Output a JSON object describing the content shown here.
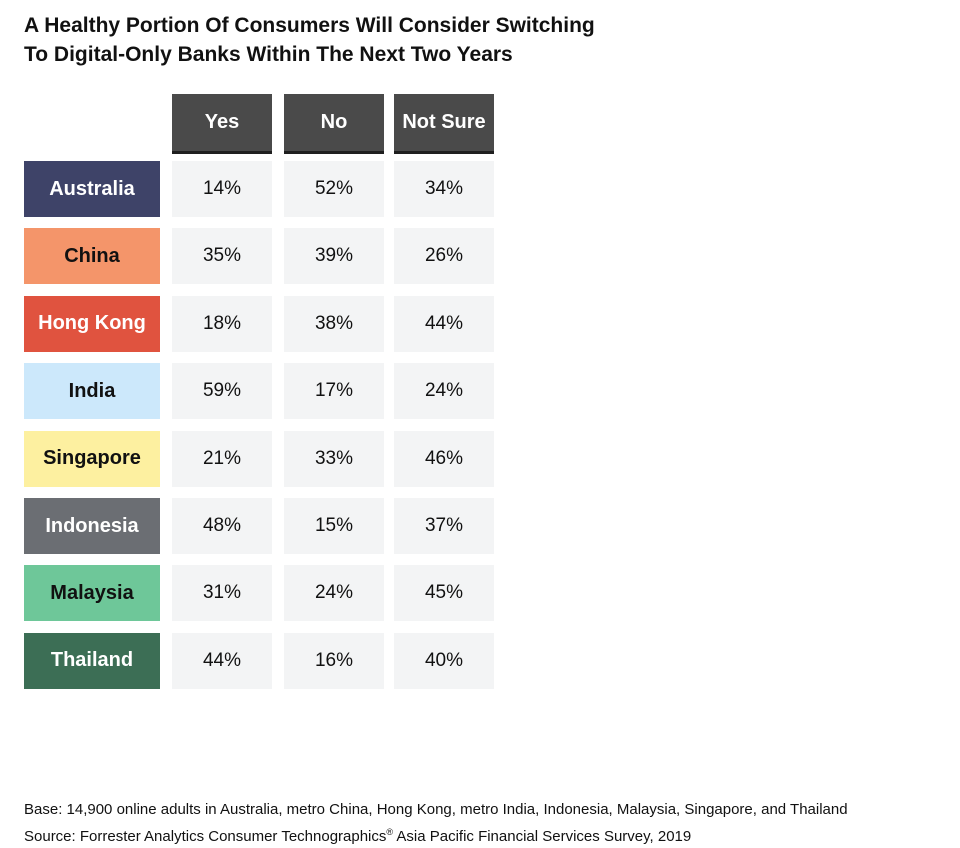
{
  "title": {
    "line1": "A Healthy Portion Of Consumers Will Consider Switching",
    "line2": "To Digital-Only Banks Within The Next Two Years"
  },
  "chart_data": {
    "type": "table",
    "columns": [
      "Yes",
      "No",
      "Not Sure"
    ],
    "rows": [
      {
        "country": "Australia",
        "values": [
          "14%",
          "52%",
          "34%"
        ],
        "color": "#3e4368",
        "text_color": "#ffffff"
      },
      {
        "country": "China",
        "values": [
          "35%",
          "39%",
          "26%"
        ],
        "color": "#f4956a",
        "text_color": "#111111"
      },
      {
        "country": "Hong Kong",
        "values": [
          "18%",
          "38%",
          "44%"
        ],
        "color": "#e0533f",
        "text_color": "#ffffff"
      },
      {
        "country": "India",
        "values": [
          "59%",
          "17%",
          "24%"
        ],
        "color": "#cce8fb",
        "text_color": "#111111"
      },
      {
        "country": "Singapore",
        "values": [
          "21%",
          "33%",
          "46%"
        ],
        "color": "#fdf0a0",
        "text_color": "#111111"
      },
      {
        "country": "Indonesia",
        "values": [
          "48%",
          "15%",
          "37%"
        ],
        "color": "#6b6e73",
        "text_color": "#ffffff"
      },
      {
        "country": "Malaysia",
        "values": [
          "31%",
          "24%",
          "45%"
        ],
        "color": "#6ec799",
        "text_color": "#111111"
      },
      {
        "country": "Thailand",
        "values": [
          "44%",
          "16%",
          "40%"
        ],
        "color": "#3c6e55",
        "text_color": "#ffffff"
      }
    ]
  },
  "footer": {
    "base": "Base: 14,900 online adults in Australia, metro China, Hong Kong, metro India, Indonesia, Malaysia, Singapore, and Thailand",
    "source_prefix": "Source: Forrester Analytics Consumer Technographics",
    "source_mark": "®",
    "source_suffix": " Asia Pacific Financial Services Survey, 2019"
  }
}
